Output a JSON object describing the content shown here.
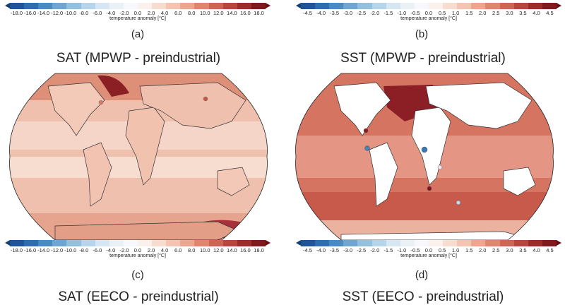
{
  "top_colorbars": {
    "left": {
      "ticks": [
        "-18.0",
        "-16.0",
        "-14.0",
        "-12.0",
        "-10.0",
        "-8.0",
        "-6.0",
        "-4.0",
        "-2.0",
        "0.0",
        "2.0",
        "4.0",
        "6.0",
        "8.0",
        "10.0",
        "12.0",
        "14.0",
        "16.0",
        "18.0"
      ],
      "label": "temperature anomaly [°C]"
    },
    "right": {
      "ticks": [
        "-4.5",
        "-4.0",
        "-3.5",
        "-3.0",
        "-2.5",
        "-2.0",
        "-1.5",
        "-1.0",
        "-0.5",
        "0.0",
        "0.5",
        "1.0",
        "1.5",
        "2.0",
        "2.5",
        "3.0",
        "3.5",
        "4.0",
        "4.5"
      ],
      "label": "temperature anomaly [°C]"
    }
  },
  "panels": {
    "a": {
      "letter": "(a)"
    },
    "b": {
      "letter": "(b)"
    },
    "c": {
      "letter": "(c)"
    },
    "d": {
      "letter": "(d)"
    }
  },
  "maps": {
    "sat": {
      "title": "SAT (MPWP - preindustrial)"
    },
    "sst": {
      "title": "SST (MPWP - preindustrial)"
    }
  },
  "bottom_colorbars": {
    "left": {
      "ticks": [
        "-18.0",
        "-16.0",
        "-14.0",
        "-12.0",
        "-10.0",
        "-8.0",
        "-6.0",
        "-4.0",
        "-2.0",
        "0.0",
        "2.0",
        "4.0",
        "6.0",
        "8.0",
        "10.0",
        "12.0",
        "14.0",
        "16.0",
        "18.0"
      ],
      "label": "temperature anomaly [°C]"
    },
    "right": {
      "ticks": [
        "-4.5",
        "-4.0",
        "-3.5",
        "-3.0",
        "-2.5",
        "-2.0",
        "-1.5",
        "-1.0",
        "-0.5",
        "0.0",
        "0.5",
        "1.0",
        "1.5",
        "2.0",
        "2.5",
        "3.0",
        "3.5",
        "4.0",
        "4.5"
      ],
      "label": "temperature anomaly [°C]"
    }
  },
  "bottom_titles": {
    "left": "SAT (EECO - preindustrial)",
    "right": "SST (EECO - preindustrial)"
  },
  "colors": {
    "scale": [
      "#1f5590",
      "#2f6ea8",
      "#4b8bc0",
      "#6ea6d1",
      "#93c0de",
      "#b7d5ea",
      "#d6e6f2",
      "#e9f1f7",
      "#f6f8fb",
      "#fbf1ec",
      "#f7dcd0",
      "#f3c4b1",
      "#eaa68f",
      "#dd876f",
      "#cc6554",
      "#b7463f",
      "#9c2c2c",
      "#7e1a1e"
    ]
  }
}
